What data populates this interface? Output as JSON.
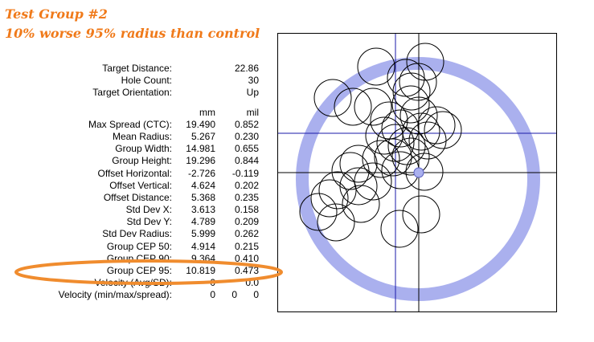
{
  "header": {
    "title": "Test Group #2",
    "subtitle": "10% worse 95% radius than control"
  },
  "stats": {
    "target_distance": {
      "label": "Target Distance:",
      "value": "22.86"
    },
    "hole_count": {
      "label": "Hole Count:",
      "value": "30"
    },
    "target_orientation": {
      "label": "Target Orientation:",
      "value": "Up"
    },
    "units": {
      "mm": "mm",
      "mil": "mil"
    },
    "rows": [
      {
        "label": "Max Spread (CTC):",
        "mm": "19.490",
        "mil": "0.852"
      },
      {
        "label": "Mean Radius:",
        "mm": "5.267",
        "mil": "0.230"
      },
      {
        "label": "Group Width:",
        "mm": "14.981",
        "mil": "0.655"
      },
      {
        "label": "Group Height:",
        "mm": "19.296",
        "mil": "0.844"
      },
      {
        "label": "Offset Horizontal:",
        "mm": "-2.726",
        "mil": "-0.119"
      },
      {
        "label": "Offset Vertical:",
        "mm": "4.624",
        "mil": "0.202"
      },
      {
        "label": "Offset Distance:",
        "mm": "5.368",
        "mil": "0.235"
      },
      {
        "label": "Std Dev X:",
        "mm": "3.613",
        "mil": "0.158"
      },
      {
        "label": "Std Dev Y:",
        "mm": "4.789",
        "mil": "0.209"
      },
      {
        "label": "Std Dev Radius:",
        "mm": "5.999",
        "mil": "0.262"
      },
      {
        "label": "Group CEP 50:",
        "mm": "4.914",
        "mil": "0.215"
      },
      {
        "label": "Group CEP 90:",
        "mm": "9.364",
        "mil": "0.410"
      },
      {
        "label": "Group CEP 95:",
        "mm": "10.819",
        "mil": "0.473"
      },
      {
        "label": "Velocity (Avg/SD):",
        "mm": "0",
        "mil": "0.0"
      }
    ],
    "velocity_mms": {
      "label": "Velocity (min/max/spread):",
      "min": "0",
      "max": "0",
      "spread": "0"
    }
  },
  "colors": {
    "title_orange": "#f07a1a",
    "highlight_orange": "#f08c2e",
    "ring_fill": "#aab0ee",
    "ring_stroke": "#5a5fc0",
    "crosshair_blue": "#1a1aa8",
    "crosshair_black": "#000000"
  }
}
